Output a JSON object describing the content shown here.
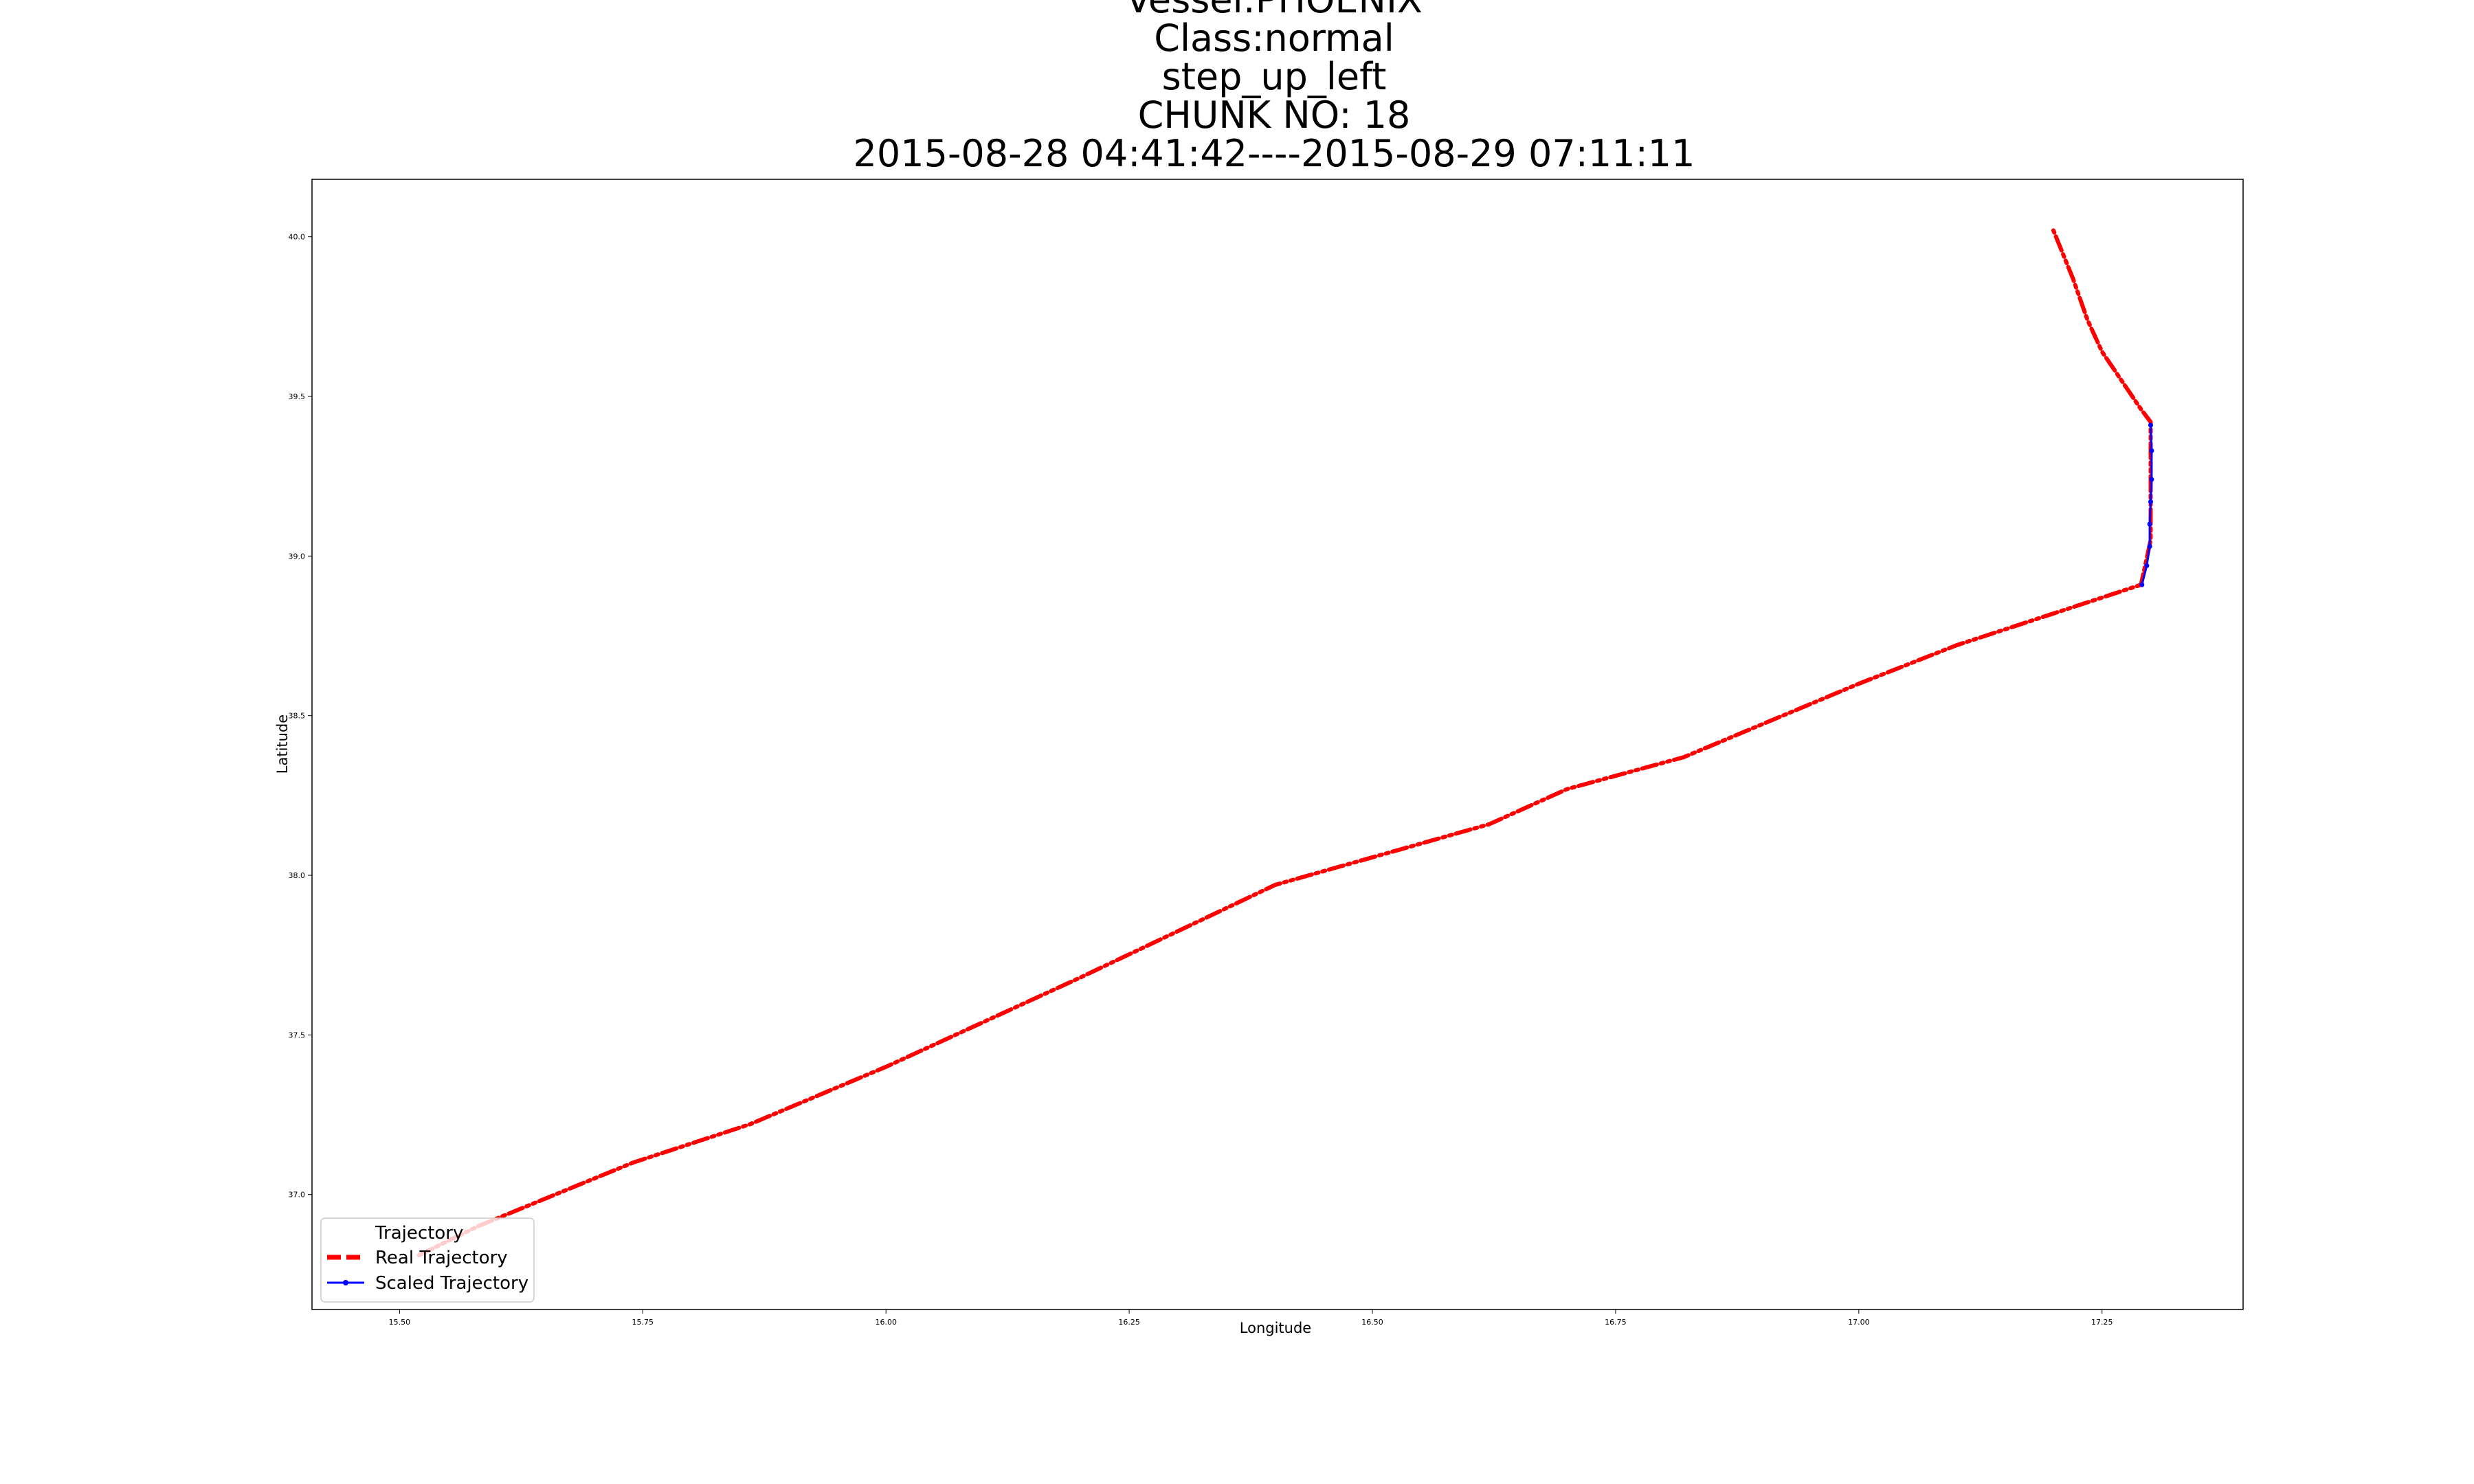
{
  "chart_data": {
    "type": "line",
    "title_lines": [
      "Vessel:PHOENIX",
      "Class:normal",
      "step_up_left",
      "CHUNK NO: 18",
      "2015-08-28 04:41:42----2015-08-29 07:11:11"
    ],
    "xlabel": "Longitude",
    "ylabel": "Latitude",
    "xlim": [
      15.41,
      17.395
    ],
    "ylim": [
      36.64,
      40.18
    ],
    "xticks": [
      15.5,
      15.75,
      16.0,
      16.25,
      16.5,
      16.75,
      17.0,
      17.25
    ],
    "xtick_labels": [
      "15.50",
      "15.75",
      "16.00",
      "16.25",
      "16.50",
      "16.75",
      "17.00",
      "17.25"
    ],
    "yticks": [
      37.0,
      37.5,
      38.0,
      38.5,
      39.0,
      39.5,
      40.0
    ],
    "ytick_labels": [
      "37.0",
      "37.5",
      "38.0",
      "38.5",
      "39.0",
      "39.5",
      "40.0"
    ],
    "grid": false,
    "legend_position": "lower-left",
    "series": [
      {
        "name": "Trajectory",
        "color": "#ffffff",
        "style": "faint",
        "x": [
          15.52,
          15.58
        ],
        "y": [
          36.81,
          36.9
        ]
      },
      {
        "name": "Real Trajectory",
        "color": "#ff0000",
        "style": "dashed",
        "x": [
          15.52,
          15.58,
          15.66,
          15.74,
          15.86,
          16.0,
          16.2,
          16.4,
          16.62,
          16.7,
          16.82,
          17.0,
          17.1,
          17.2,
          17.29,
          17.3,
          17.3,
          17.3,
          17.29,
          17.25,
          17.235,
          17.22,
          17.2
        ],
        "y": [
          36.81,
          36.9,
          37.0,
          37.1,
          37.22,
          37.4,
          37.68,
          37.97,
          38.16,
          38.27,
          38.37,
          38.6,
          38.72,
          38.82,
          38.91,
          39.05,
          39.2,
          39.42,
          39.46,
          39.64,
          39.74,
          39.87,
          40.02
        ]
      },
      {
        "name": "Scaled Trajectory",
        "color": "#0000ff",
        "style": "solid-with-markers",
        "x": [
          17.291,
          17.296,
          17.299,
          17.299,
          17.3,
          17.301,
          17.301,
          17.3
        ],
        "y": [
          38.91,
          38.97,
          39.03,
          39.1,
          39.17,
          39.24,
          39.33,
          39.41
        ]
      }
    ]
  }
}
